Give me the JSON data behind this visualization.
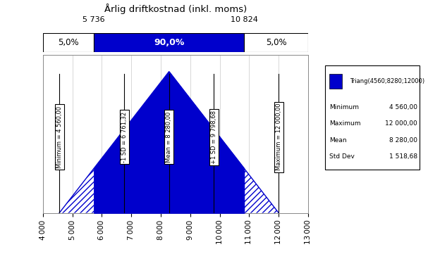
{
  "title": "Årlig driftkostnad (inkl. moms)",
  "min_val": 4560,
  "max_val": 12000,
  "mode_val": 8280,
  "mean_val": 8280.0,
  "std_dev": 1518.68,
  "minus1sd": 6761.32,
  "plus1sd": 9798.68,
  "p5": 5736,
  "p95": 10824,
  "pct_left": "5,0%",
  "pct_mid": "90,0%",
  "pct_right": "5,0%",
  "legend_label": "Triang(4560;8280;12000)",
  "legend_stats": [
    [
      "Minimum",
      "4 560,00"
    ],
    [
      "Maximum",
      "12 000,00"
    ],
    [
      "Mean",
      "8 280,00"
    ],
    [
      "Std Dev",
      "1 518,68"
    ]
  ],
  "xmin": 4000,
  "xmax": 13000,
  "tick_step": 1000,
  "fill_color": "#0000CC",
  "background_color": "#FFFFFF",
  "grid_color": "#C8C8C8",
  "vert_lines": [
    4560,
    6761.32,
    8280,
    9798.68,
    12000
  ],
  "vert_labels": [
    "Minimum = 4 560,00",
    "-1 SD = 6 761,32",
    "Mean = 8 280,00",
    "+1 SD = 9 798,68",
    "Maximum = 12 000,00"
  ],
  "p5_label": "5 736",
  "p95_label": "10 824"
}
